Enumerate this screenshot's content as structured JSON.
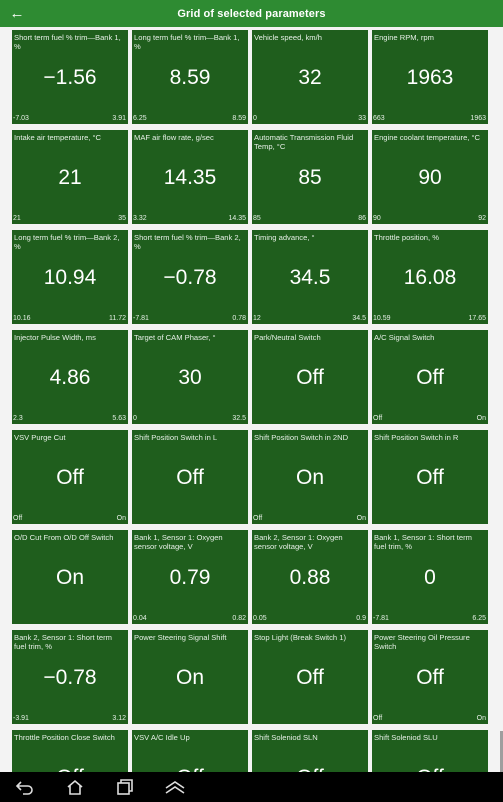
{
  "header": {
    "title": "Grid of selected parameters",
    "back_icon": "arrow-left-icon"
  },
  "tiles": [
    {
      "label": "Short term fuel % trim—Bank 1, %",
      "value": "−1.56",
      "min": "-7.03",
      "max": "3.91"
    },
    {
      "label": "Long term fuel % trim—Bank 1, %",
      "value": "8.59",
      "min": "6.25",
      "max": "8.59"
    },
    {
      "label": "Vehicle speed, km/h",
      "value": "32",
      "min": "0",
      "max": "33"
    },
    {
      "label": "Engine RPM, rpm",
      "value": "1963",
      "min": "663",
      "max": "1963"
    },
    {
      "label": "Intake air temperature, °C",
      "value": "21",
      "min": "21",
      "max": "35"
    },
    {
      "label": "MAF air flow rate, g/sec",
      "value": "14.35",
      "min": "3.32",
      "max": "14.35"
    },
    {
      "label": "Automatic Transmission Fluid Temp, °C",
      "value": "85",
      "min": "85",
      "max": "86"
    },
    {
      "label": "Engine coolant temperature, °C",
      "value": "90",
      "min": "90",
      "max": "92"
    },
    {
      "label": "Long term fuel % trim—Bank 2, %",
      "value": "10.94",
      "min": "10.16",
      "max": "11.72"
    },
    {
      "label": "Short term fuel % trim—Bank 2, %",
      "value": "−0.78",
      "min": "-7.81",
      "max": "0.78"
    },
    {
      "label": "Timing advance, °",
      "value": "34.5",
      "min": "12",
      "max": "34.5"
    },
    {
      "label": "Throttle position, %",
      "value": "16.08",
      "min": "10.59",
      "max": "17.65"
    },
    {
      "label": "Injector Pulse Width, ms",
      "value": "4.86",
      "min": "2.3",
      "max": "5.63"
    },
    {
      "label": "Target of CAM Phaser, °",
      "value": "30",
      "min": "0",
      "max": "32.5"
    },
    {
      "label": "Park/Neutral Switch",
      "value": "Off",
      "min": "",
      "max": ""
    },
    {
      "label": "A/C Signal Switch",
      "value": "Off",
      "min": "Off",
      "max": "On"
    },
    {
      "label": "VSV Purge Cut",
      "value": "Off",
      "min": "Off",
      "max": "On"
    },
    {
      "label": "Shift Position Switch in L",
      "value": "Off",
      "min": "",
      "max": ""
    },
    {
      "label": "Shift Position Switch in 2ND",
      "value": "On",
      "min": "Off",
      "max": "On"
    },
    {
      "label": "Shift Position Switch in R",
      "value": "Off",
      "min": "",
      "max": ""
    },
    {
      "label": "O/D Cut From O/D Off Switch",
      "value": "On",
      "min": "",
      "max": ""
    },
    {
      "label": "Bank 1, Sensor 1: Oxygen sensor voltage, V",
      "value": "0.79",
      "min": "0.04",
      "max": "0.82"
    },
    {
      "label": "Bank 2, Sensor 1: Oxygen sensor voltage, V",
      "value": "0.88",
      "min": "0.05",
      "max": "0.9"
    },
    {
      "label": "Bank 1, Sensor 1: Short term fuel trim, %",
      "value": "0",
      "min": "-7.81",
      "max": "6.25"
    },
    {
      "label": "Bank 2, Sensor 1: Short term fuel trim, %",
      "value": "−0.78",
      "min": "-3.91",
      "max": "3.12"
    },
    {
      "label": "Power Steering Signal Shift",
      "value": "On",
      "min": "",
      "max": ""
    },
    {
      "label": "Stop Light (Break Switch 1)",
      "value": "Off",
      "min": "",
      "max": ""
    },
    {
      "label": "Power Steering Oil Pressure Switch",
      "value": "Off",
      "min": "Off",
      "max": "On"
    },
    {
      "label": "Throttle Position Close Switch",
      "value": "Off",
      "min": "",
      "max": ""
    },
    {
      "label": "VSV A/C Idle Up",
      "value": "Off",
      "min": "",
      "max": ""
    },
    {
      "label": "Shift Soleniod SLN",
      "value": "Off",
      "min": "",
      "max": ""
    },
    {
      "label": "Shift Soleniod SLU",
      "value": "Off",
      "min": "",
      "max": ""
    }
  ],
  "navbar": {
    "icons": [
      "back-icon",
      "home-icon",
      "recent-apps-icon",
      "menu-up-icon"
    ]
  },
  "colors": {
    "header_bg": "#2e8b32",
    "tile_bg": "#1f5e1d",
    "grid_bg": "#f3f3f3"
  }
}
